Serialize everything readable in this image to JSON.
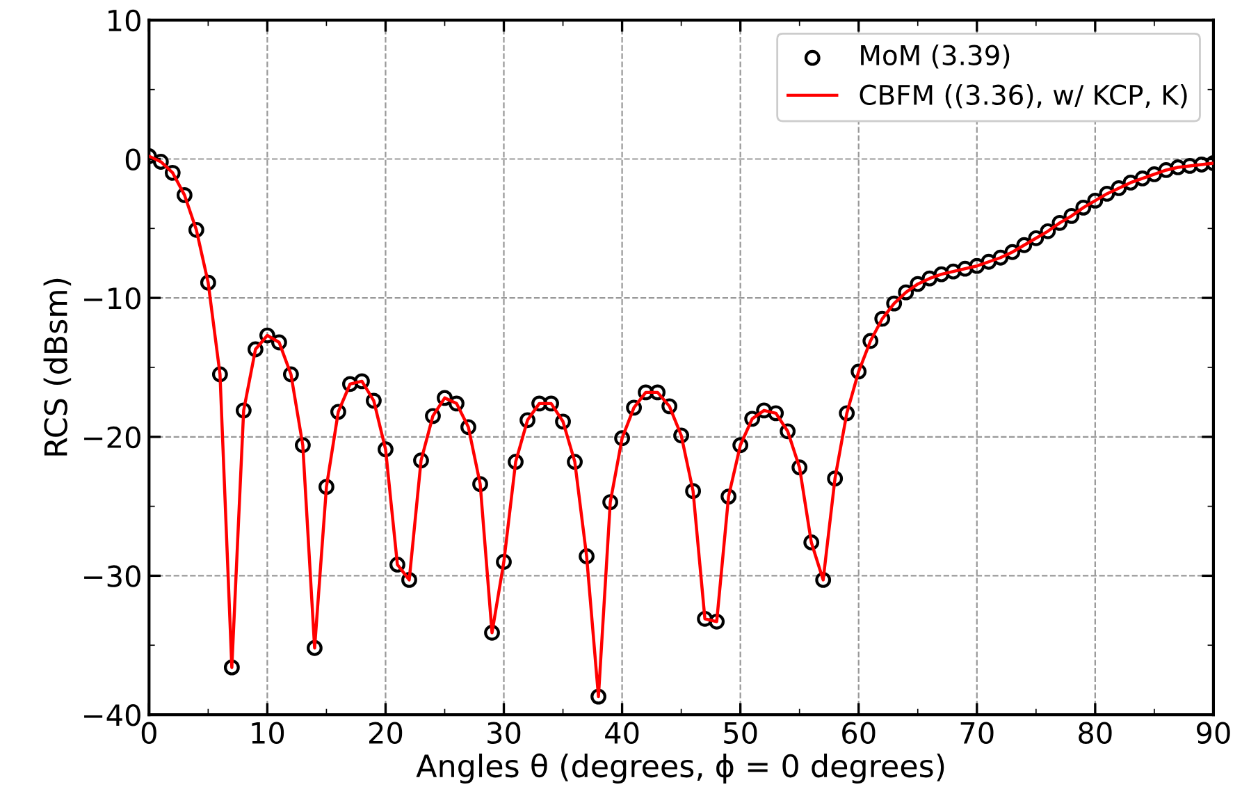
{
  "chart_data": {
    "type": "line",
    "xlabel": "Angles θ (degrees, ϕ = 0 degrees)",
    "ylabel": "RCS (dBsm)",
    "x": [
      0,
      1,
      2,
      3,
      4,
      5,
      6,
      7,
      8,
      9,
      10,
      11,
      12,
      13,
      14,
      15,
      16,
      17,
      18,
      19,
      20,
      21,
      22,
      23,
      24,
      25,
      26,
      27,
      28,
      29,
      30,
      31,
      32,
      33,
      34,
      35,
      36,
      37,
      38,
      39,
      40,
      41,
      42,
      43,
      44,
      45,
      46,
      47,
      48,
      49,
      50,
      51,
      52,
      53,
      54,
      55,
      56,
      57,
      58,
      59,
      60,
      61,
      62,
      63,
      64,
      65,
      66,
      67,
      68,
      69,
      70,
      71,
      72,
      73,
      74,
      75,
      76,
      77,
      78,
      79,
      80,
      81,
      82,
      83,
      84,
      85,
      86,
      87,
      88,
      89,
      90
    ],
    "series": [
      {
        "name": "MoM (3.39)",
        "type": "scatter",
        "marker": "circle",
        "color": "#000000",
        "values": [
          0.2,
          -0.2,
          -1.0,
          -2.6,
          -5.1,
          -8.9,
          -15.5,
          -36.6,
          -18.1,
          -13.7,
          -12.7,
          -13.2,
          -15.5,
          -20.6,
          -35.2,
          -23.6,
          -18.2,
          -16.2,
          -16.0,
          -17.4,
          -20.9,
          -29.2,
          -30.3,
          -21.7,
          -18.5,
          -17.2,
          -17.6,
          -19.3,
          -23.4,
          -34.1,
          -29.0,
          -21.8,
          -18.8,
          -17.6,
          -17.6,
          -18.9,
          -21.8,
          -28.6,
          -38.7,
          -24.7,
          -20.1,
          -17.9,
          -16.8,
          -16.8,
          -17.8,
          -19.9,
          -23.9,
          -33.1,
          -33.3,
          -24.3,
          -20.6,
          -18.7,
          -18.1,
          -18.3,
          -19.6,
          -22.2,
          -27.6,
          -30.3,
          -23.0,
          -18.3,
          -15.3,
          -13.1,
          -11.5,
          -10.4,
          -9.6,
          -9.0,
          -8.6,
          -8.3,
          -8.1,
          -7.9,
          -7.7,
          -7.4,
          -7.1,
          -6.7,
          -6.2,
          -5.7,
          -5.2,
          -4.6,
          -4.1,
          -3.5,
          -3.0,
          -2.5,
          -2.1,
          -1.7,
          -1.4,
          -1.1,
          -0.8,
          -0.6,
          -0.5,
          -0.4,
          -0.3
        ]
      },
      {
        "name": "CBFM ((3.36), w/ KCP, K)",
        "line_style": "solid",
        "color": "#ff0000",
        "values": [
          0.2,
          -0.2,
          -1.0,
          -2.6,
          -5.1,
          -8.9,
          -15.5,
          -36.6,
          -18.1,
          -13.7,
          -12.7,
          -13.2,
          -15.5,
          -20.6,
          -35.2,
          -23.6,
          -18.2,
          -16.2,
          -16.0,
          -17.4,
          -20.9,
          -29.2,
          -30.3,
          -21.7,
          -18.5,
          -17.2,
          -17.6,
          -19.3,
          -23.4,
          -34.1,
          -29.0,
          -21.8,
          -18.8,
          -17.6,
          -17.6,
          -18.9,
          -21.8,
          -28.6,
          -38.7,
          -24.7,
          -20.1,
          -17.9,
          -16.8,
          -16.8,
          -17.8,
          -19.9,
          -23.9,
          -33.1,
          -33.3,
          -24.3,
          -20.6,
          -18.7,
          -18.1,
          -18.3,
          -19.6,
          -22.2,
          -27.6,
          -30.3,
          -23.0,
          -18.3,
          -15.3,
          -13.1,
          -11.5,
          -10.4,
          -9.6,
          -9.0,
          -8.6,
          -8.3,
          -8.1,
          -7.9,
          -7.7,
          -7.4,
          -7.1,
          -6.7,
          -6.2,
          -5.7,
          -5.2,
          -4.6,
          -4.1,
          -3.5,
          -3.0,
          -2.5,
          -2.1,
          -1.7,
          -1.4,
          -1.1,
          -0.8,
          -0.6,
          -0.5,
          -0.4,
          -0.3
        ]
      }
    ],
    "xlim": [
      0,
      90
    ],
    "xticks": [
      0,
      10,
      20,
      30,
      40,
      50,
      60,
      70,
      80,
      90
    ],
    "ylim": [
      -40,
      10
    ],
    "yticks": [
      {
        "value": -40,
        "label": "−40"
      },
      {
        "value": -30,
        "label": "−30"
      },
      {
        "value": -20,
        "label": "−20"
      },
      {
        "value": -10,
        "label": "−10"
      },
      0,
      10
    ],
    "grid": true,
    "legend": "top right"
  }
}
